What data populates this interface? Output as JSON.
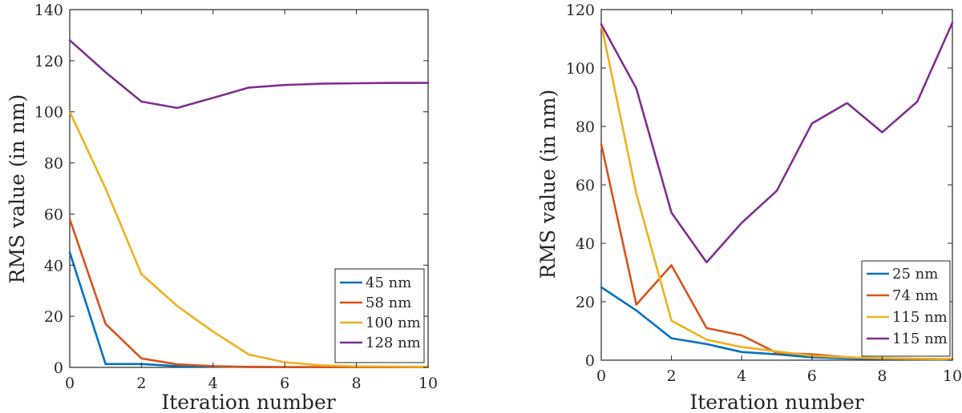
{
  "chart_data": [
    {
      "type": "line",
      "title": "",
      "xlabel": "Iteration number",
      "ylabel": "RMS value (in nm)",
      "xlim": [
        0,
        10
      ],
      "ylim": [
        0,
        140
      ],
      "xticks": [
        0,
        2,
        4,
        6,
        8,
        10
      ],
      "yticks": [
        0,
        20,
        40,
        60,
        80,
        100,
        120,
        140
      ],
      "xtick_labels": [
        "0",
        "2",
        "4",
        "6",
        "8",
        "10"
      ],
      "ytick_labels": [
        "0",
        "20",
        "40",
        "60",
        "80",
        "100",
        "120",
        "140"
      ],
      "legend_position": "bottom-right",
      "x": [
        0,
        1,
        2,
        3,
        4,
        5,
        6,
        7,
        8,
        9,
        10
      ],
      "series": [
        {
          "name": "45 nm",
          "color": "#0072BD",
          "values": [
            45,
            1.3,
            1.3,
            0.5,
            0.3,
            0.2,
            0.1,
            0.1,
            0.1,
            0.1,
            0.1
          ]
        },
        {
          "name": "58 nm",
          "color": "#D95319",
          "values": [
            58,
            17,
            3.5,
            1.2,
            0.5,
            0.2,
            0.1,
            0.1,
            0.1,
            0.1,
            0.1
          ]
        },
        {
          "name": "100 nm",
          "color": "#EDB120",
          "values": [
            100,
            70,
            36.5,
            24,
            14,
            5,
            2,
            0.8,
            0.4,
            0.3,
            0.2
          ]
        },
        {
          "name": "128 nm",
          "color": "#7E2F8E",
          "values": [
            128,
            115.5,
            104,
            101.5,
            105.5,
            109.5,
            110.5,
            111,
            111.2,
            111.3,
            111.3
          ]
        }
      ]
    },
    {
      "type": "line",
      "title": "",
      "xlabel": "Iteration number",
      "ylabel": "RMS value (in nm)",
      "xlim": [
        0,
        10
      ],
      "ylim": [
        0,
        120
      ],
      "xticks": [
        0,
        2,
        4,
        6,
        8,
        10
      ],
      "yticks": [
        0,
        20,
        40,
        60,
        80,
        100,
        120
      ],
      "xtick_labels": [
        "0",
        "2",
        "4",
        "6",
        "8",
        "10"
      ],
      "ytick_labels": [
        "0",
        "20",
        "40",
        "60",
        "80",
        "100",
        "120"
      ],
      "legend_position": "bottom-right",
      "x": [
        0,
        1,
        2,
        3,
        4,
        5,
        6,
        7,
        8,
        9,
        10
      ],
      "series": [
        {
          "name": "25 nm",
          "color": "#0072BD",
          "values": [
            25,
            17,
            7.5,
            5.5,
            2.8,
            2,
            1,
            0.6,
            0.4,
            0.3,
            0.2
          ]
        },
        {
          "name": "74 nm",
          "color": "#D95319",
          "values": [
            74,
            19,
            32.5,
            11,
            8.5,
            2.5,
            2,
            1,
            0.6,
            0.4,
            0.3
          ]
        },
        {
          "name": "115 nm",
          "color": "#EDB120",
          "values": [
            115,
            57,
            13.5,
            7,
            4.5,
            3,
            1.5,
            1,
            0.7,
            0.5,
            0.4
          ]
        },
        {
          "name": "115 nm",
          "color": "#7E2F8E",
          "values": [
            115,
            93,
            50.5,
            33.5,
            47,
            58,
            81,
            88,
            78,
            88.5,
            115.5
          ]
        }
      ]
    }
  ]
}
